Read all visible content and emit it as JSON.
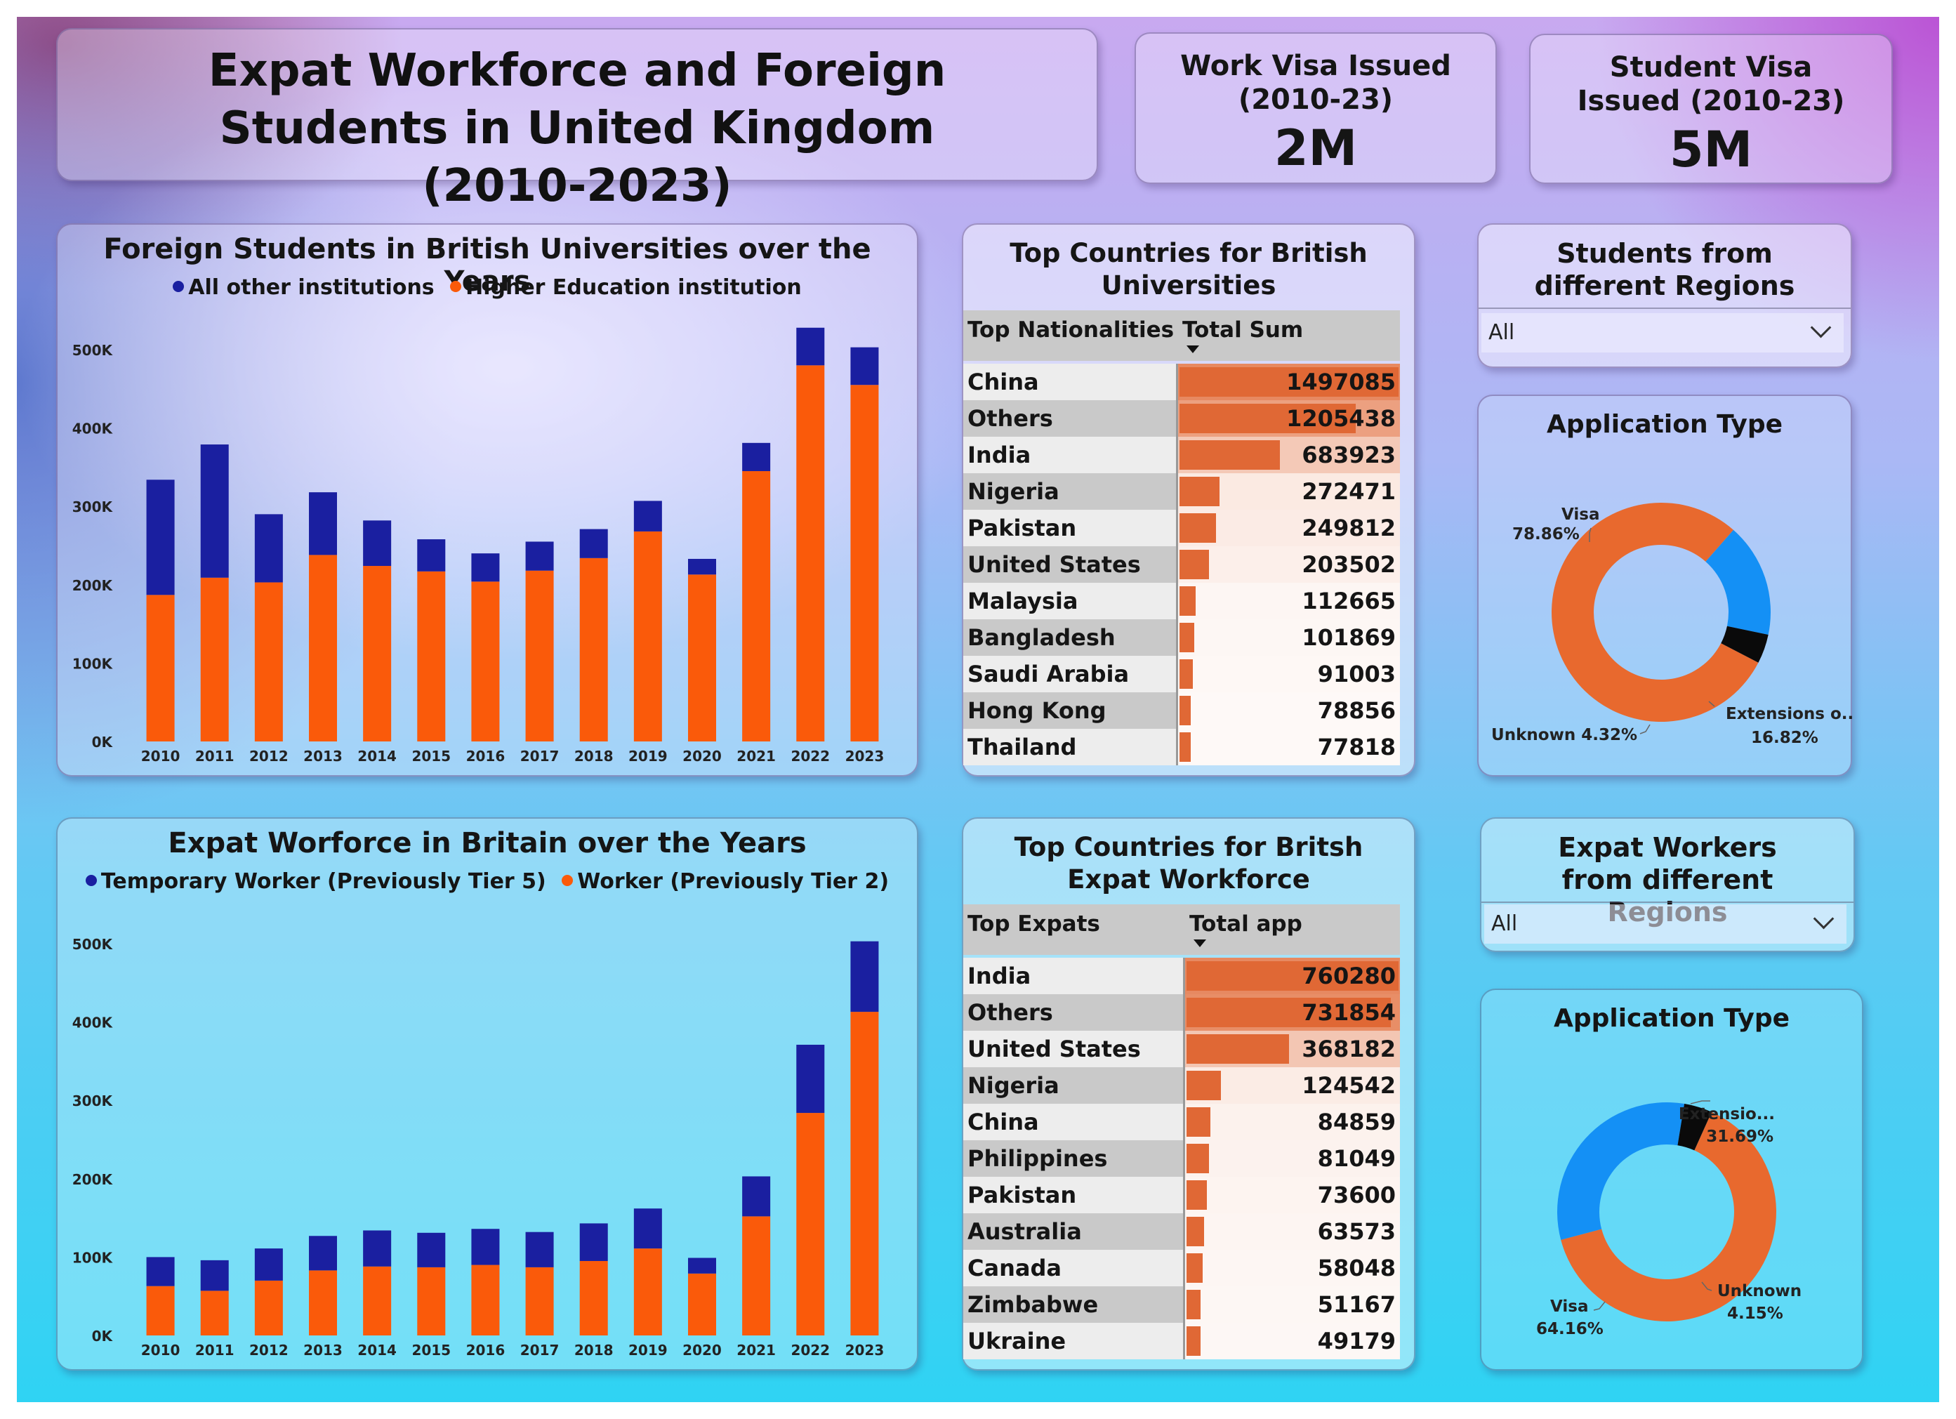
{
  "dashboard": {
    "title": "Expat Workforce and Foreign Students in United Kingdom (2010-2023)"
  },
  "kpis": [
    {
      "label": "Work Visa Issued (2010-23)",
      "value": "2M"
    },
    {
      "label": "Student Visa Issued (2010-23)",
      "value": "5M"
    }
  ],
  "colors": {
    "orange": "#fa5a0a",
    "navy": "#1a1fa0",
    "table_bar": "#e06835",
    "donut_orange": "#e8692e",
    "donut_blue": "#1490f5",
    "donut_black": "#0a0a0a"
  },
  "student_table": {
    "title": "Top Countries for British Universities",
    "col1": "Top Nationalities",
    "col2": "Total Sum",
    "rows": [
      {
        "name": "China",
        "value": "1497085",
        "n": 1497085
      },
      {
        "name": "Others",
        "value": "1205438",
        "n": 1205438
      },
      {
        "name": "India",
        "value": "683923",
        "n": 683923
      },
      {
        "name": "Nigeria",
        "value": "272471",
        "n": 272471
      },
      {
        "name": "Pakistan",
        "value": "249812",
        "n": 249812
      },
      {
        "name": "United States",
        "value": "203502",
        "n": 203502
      },
      {
        "name": "Malaysia",
        "value": "112665",
        "n": 112665
      },
      {
        "name": "Bangladesh",
        "value": "101869",
        "n": 101869
      },
      {
        "name": "Saudi Arabia",
        "value": "91003",
        "n": 91003
      },
      {
        "name": "Hong Kong",
        "value": "78856",
        "n": 78856
      },
      {
        "name": "Thailand",
        "value": "77818",
        "n": 77818
      }
    ]
  },
  "worker_table": {
    "title": "Top Countries for Britsh Expat Workforce",
    "col1": "Top Expats",
    "col2": "Total app",
    "rows": [
      {
        "name": "India",
        "value": "760280",
        "n": 760280
      },
      {
        "name": "Others",
        "value": "731854",
        "n": 731854
      },
      {
        "name": "United States",
        "value": "368182",
        "n": 368182
      },
      {
        "name": "Nigeria",
        "value": "124542",
        "n": 124542
      },
      {
        "name": "China",
        "value": "84859",
        "n": 84859
      },
      {
        "name": "Philippines",
        "value": "81049",
        "n": 81049
      },
      {
        "name": "Pakistan",
        "value": "73600",
        "n": 73600
      },
      {
        "name": "Australia",
        "value": "63573",
        "n": 63573
      },
      {
        "name": "Canada",
        "value": "58048",
        "n": 58048
      },
      {
        "name": "Zimbabwe",
        "value": "51167",
        "n": 51167
      },
      {
        "name": "Ukraine",
        "value": "49179",
        "n": 49179
      }
    ]
  },
  "slicers": {
    "students": {
      "title": "Students from different Regions",
      "value": "All"
    },
    "workers": {
      "title": "Expat Workers from different Regions",
      "value": "All"
    }
  },
  "chart_data": [
    {
      "type": "bar",
      "stacked": true,
      "title": "Foreign Students in British Universities over the Years",
      "categories": [
        "2010",
        "2011",
        "2012",
        "2013",
        "2014",
        "2015",
        "2016",
        "2017",
        "2018",
        "2019",
        "2020",
        "2021",
        "2022",
        "2023"
      ],
      "series": [
        {
          "name": "Higher Education institution",
          "color": "orange",
          "values": [
            187000,
            209000,
            203000,
            238000,
            224000,
            217000,
            204000,
            218000,
            234000,
            268000,
            213000,
            345000,
            480000,
            455000
          ]
        },
        {
          "name": "All other institutions",
          "color": "navy",
          "values": [
            147000,
            170000,
            87000,
            80000,
            58000,
            41000,
            36000,
            37000,
            37000,
            39000,
            20000,
            36000,
            48000,
            48000
          ]
        }
      ],
      "legend_order": [
        "All other institutions",
        "Higher Education institution"
      ],
      "yticks": [
        "0K",
        "100K",
        "200K",
        "300K",
        "400K",
        "500K"
      ],
      "ylim": [
        0,
        500000
      ],
      "legend_position": "top"
    },
    {
      "type": "bar",
      "stacked": true,
      "title": "Expat Worforce in Britain over the Years",
      "categories": [
        "2010",
        "2011",
        "2012",
        "2013",
        "2014",
        "2015",
        "2016",
        "2017",
        "2018",
        "2019",
        "2020",
        "2021",
        "2022",
        "2023"
      ],
      "series": [
        {
          "name": "Worker (Previously Tier 2)",
          "color": "orange",
          "values": [
            63000,
            57000,
            70000,
            83000,
            88000,
            87000,
            90000,
            87000,
            95000,
            111000,
            79000,
            152000,
            284000,
            413000
          ]
        },
        {
          "name": "Temporary Worker (Previously Tier 5)",
          "color": "navy",
          "values": [
            37000,
            39000,
            41000,
            44000,
            46000,
            44000,
            46000,
            45000,
            48000,
            51000,
            20000,
            51000,
            87000,
            90000
          ]
        }
      ],
      "legend_order": [
        "Temporary Worker (Previously Tier 5)",
        "Worker (Previously Tier 2)"
      ],
      "yticks": [
        "0K",
        "100K",
        "200K",
        "300K",
        "400K",
        "500K"
      ],
      "ylim": [
        0,
        500000
      ],
      "legend_position": "top"
    },
    {
      "type": "pie",
      "donut": true,
      "title": "Application Type",
      "slices": [
        {
          "label": "Visa",
          "pct": 78.86,
          "text": "78.86%",
          "color": "donut_orange"
        },
        {
          "label": "Extensions o...",
          "pct": 16.82,
          "text": "16.82%",
          "color": "donut_blue"
        },
        {
          "label": "Unknown",
          "pct": 4.32,
          "text": "4.32%",
          "color": "donut_black"
        }
      ]
    },
    {
      "type": "pie",
      "donut": true,
      "title": "Application Type",
      "slices": [
        {
          "label": "Visa",
          "pct": 64.16,
          "text": "64.16%",
          "color": "donut_orange"
        },
        {
          "label": "Extensio...",
          "pct": 31.69,
          "text": "31.69%",
          "color": "donut_blue"
        },
        {
          "label": "Unknown",
          "pct": 4.15,
          "text": "4.15%",
          "color": "donut_black"
        }
      ]
    }
  ]
}
